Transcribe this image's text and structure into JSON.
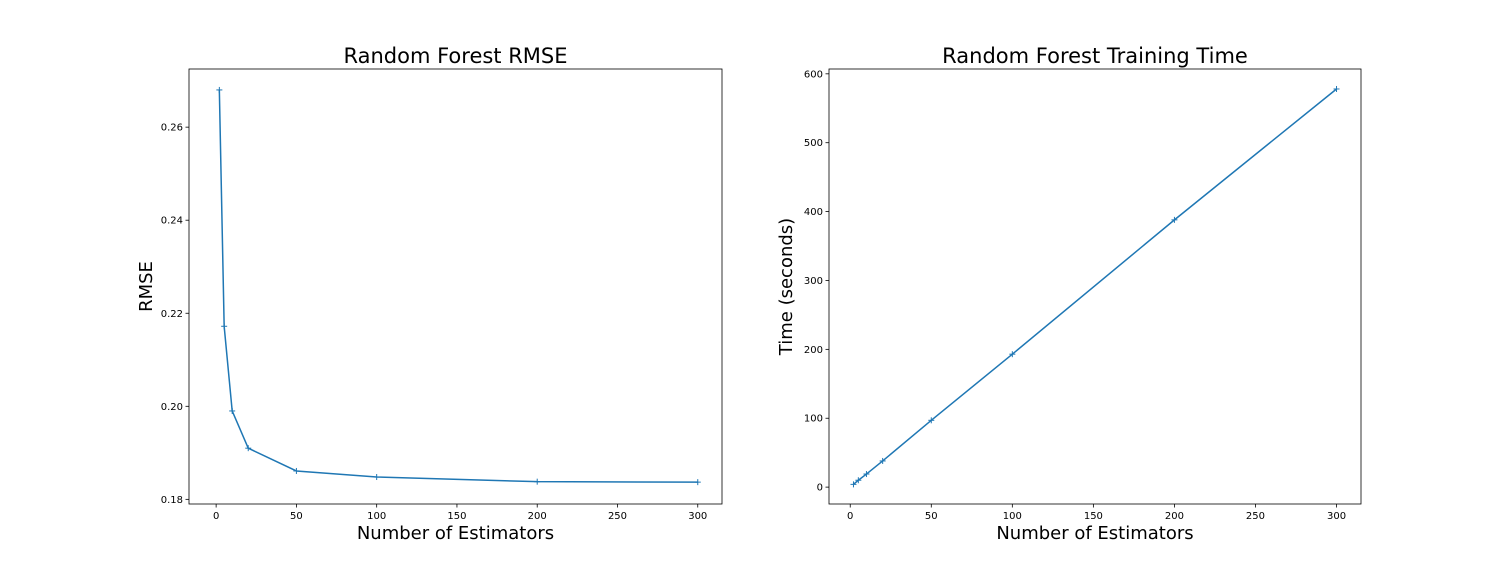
{
  "chart_data": [
    {
      "type": "line",
      "title": "Random Forest RMSE",
      "xlabel": "Number of Estimators",
      "ylabel": "RMSE",
      "x": [
        2,
        5,
        10,
        20,
        50,
        100,
        200,
        300
      ],
      "series": [
        {
          "values": [
            0.268,
            0.2172,
            0.199,
            0.191,
            0.1861,
            0.1848,
            0.1838,
            0.1837
          ],
          "color": "#1f77b4"
        }
      ],
      "xlim": [
        -16.9,
        315.1
      ],
      "ylim": [
        0.179,
        0.2725
      ],
      "xticks": [
        0,
        50,
        100,
        150,
        200,
        250,
        300
      ],
      "yticks": [
        0.18,
        0.2,
        0.22,
        0.24,
        0.26
      ],
      "yticks_format": 2,
      "marker": "+",
      "grid": false,
      "legend": "none"
    },
    {
      "type": "line",
      "title": "Random Forest Training Time",
      "xlabel": "Number of Estimators",
      "ylabel": "Time (seconds)",
      "x": [
        2,
        5,
        10,
        20,
        50,
        100,
        200,
        300
      ],
      "series": [
        {
          "values": [
            4,
            10,
            19,
            38,
            97,
            193,
            388,
            578
          ],
          "color": "#1f77b4"
        }
      ],
      "xlim": [
        -13.1,
        315.1
      ],
      "ylim": [
        -24.5,
        607.0
      ],
      "xticks": [
        0,
        50,
        100,
        150,
        200,
        250,
        300
      ],
      "yticks": [
        0,
        100,
        200,
        300,
        400,
        500,
        600
      ],
      "yticks_format": 0,
      "marker": "+",
      "grid": false,
      "legend": "none"
    }
  ]
}
